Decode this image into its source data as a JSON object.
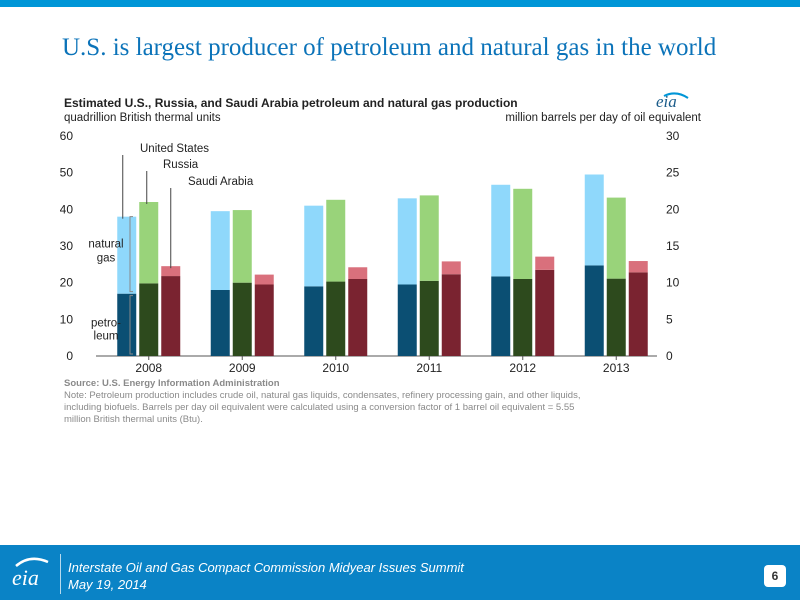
{
  "slide": {
    "title": "U.S. is largest producer of petroleum and natural gas in the world",
    "footer_line1": "Interstate Oil and Gas Compact Commission Midyear Issues Summit",
    "footer_line2": "May 19, 2014",
    "page_number": "6",
    "logo_text": "eia"
  },
  "colors": {
    "accent": "#0a83c6",
    "title": "#0b73b9",
    "us_gas": "#8fd8fb",
    "us_oil": "#0b4f73",
    "russia_gas": "#99d37a",
    "russia_oil": "#2d4a1d",
    "saudi_gas": "#d9707c",
    "saudi_oil": "#7a2330"
  },
  "chart_data": {
    "type": "bar",
    "stacked": true,
    "title": "Estimated U.S., Russia, and Saudi Arabia petroleum and natural gas production",
    "ylabel_left": "quadrillion British thermal units",
    "ylabel_right": "million barrels per day of oil equivalent",
    "logo": "eia",
    "categories": [
      "2008",
      "2009",
      "2010",
      "2011",
      "2012",
      "2013"
    ],
    "ylim_left": [
      0,
      60
    ],
    "yticks_left": [
      0,
      10,
      20,
      30,
      40,
      50,
      60
    ],
    "ylim_right": [
      0,
      30
    ],
    "yticks_right": [
      0,
      5,
      10,
      15,
      20,
      25,
      30
    ],
    "grid": false,
    "countries": [
      {
        "name": "United States",
        "petroleum": [
          17,
          18,
          19,
          19.5,
          21.7,
          24.7
        ],
        "natural_gas": [
          21,
          21.5,
          22,
          23.5,
          25,
          24.8
        ]
      },
      {
        "name": "Russia",
        "petroleum": [
          19.8,
          20,
          20.3,
          20.5,
          21,
          21.1
        ],
        "natural_gas": [
          22.2,
          19.8,
          22.3,
          23.3,
          24.6,
          22.1
        ]
      },
      {
        "name": "Saudi Arabia",
        "petroleum": [
          21.8,
          19.5,
          21,
          22.3,
          23.5,
          22.8
        ],
        "natural_gas": [
          2.7,
          2.7,
          3.2,
          3.5,
          3.6,
          3.1
        ]
      }
    ],
    "series_labels": [
      "United States",
      "Russia",
      "Saudi Arabia"
    ],
    "bracket_labels": {
      "natural_gas": [
        "natural",
        "gas"
      ],
      "petroleum": [
        "petro-",
        "leum"
      ]
    },
    "source": "Source: U.S. Energy Information Administration",
    "note_lines": [
      "Note: Petroleum production includes crude oil, natural gas liquids, condensates, refinery processing gain, and other liquids,",
      "including biofuels. Barrels per day oil equivalent were calculated using a conversion factor of 1 barrel oil equivalent = 5.55",
      "million British thermal units (Btu)."
    ]
  }
}
